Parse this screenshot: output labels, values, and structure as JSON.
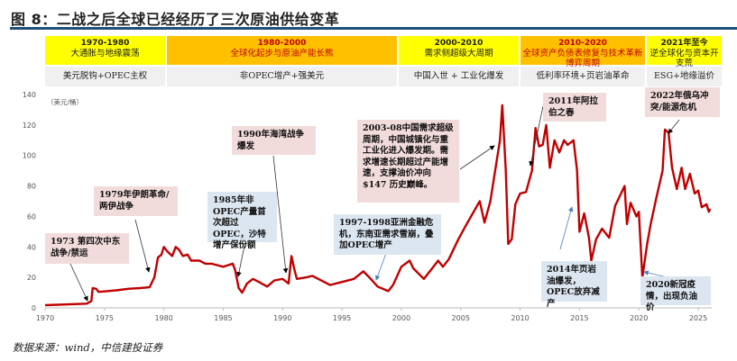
{
  "title": "图 8：二战之后全球已经经历了三次原油供给变革",
  "periods": [
    {
      "years": "1970-1980",
      "theme": "大通胀与地缘震荡",
      "driver": "美元脱钩+OPEC主权",
      "color": "#ffff00",
      "text_color": "#222222"
    },
    {
      "years": "1980-2000",
      "theme": "全球化起步与原油产能长熊",
      "driver": "非OPEC增产+强美元",
      "color": "#ffc000",
      "text_color": "#c00000"
    },
    {
      "years": "2000-2010",
      "theme": "需求侧超级大周期",
      "driver": "中国入世 + 工业化爆发",
      "color": "#ffff00",
      "text_color": "#222222"
    },
    {
      "years": "2010-2020",
      "theme": "全球资产负债表修复与技术革新博弈周期",
      "driver": "低利率环境+页岩油革命",
      "color": "#ffc000",
      "text_color": "#c00000"
    },
    {
      "years": "2021年至今",
      "theme": "逆全球化与资本开支荒",
      "driver": "ESG+地缘溢价",
      "color": "#ffff00",
      "text_color": "#222222"
    }
  ],
  "annotations": [
    {
      "text": "1973 第四次中东战争/禁运",
      "style": "pink"
    },
    {
      "text": "1979年伊朗革命/两伊战争",
      "style": "pink"
    },
    {
      "text": "1985年非OPEC产量首次超过OPEC，沙特增产保份额",
      "style": "blue"
    },
    {
      "text": "1990年海湾战争爆发",
      "style": "pink"
    },
    {
      "text": "2003-08中国需求超级周期，中国城镇化与重工业化进入爆发期。需求增速长期超过产能增速，支撑油价冲向 $147 历史巅峰。",
      "style": "pink"
    },
    {
      "text": "1997-1998亚洲金融危机，东南亚需求雪崩，叠加OPEC增产",
      "style": "blue"
    },
    {
      "text": "2011年阿拉伯之春",
      "style": "pink"
    },
    {
      "text": "2014年页岩油爆发，OPEC放弃减产",
      "style": "blue"
    },
    {
      "text": "2022年俄乌冲突/能源危机",
      "style": "pink"
    },
    {
      "text": "2020新冠疫情，出现负油价",
      "style": "blue"
    }
  ],
  "source": "数据来源：wind，中信建投证券",
  "chart_data": {
    "type": "line",
    "ylabel": "（美元/桶）",
    "ylim": [
      0,
      140
    ],
    "yticks": [
      0,
      20,
      40,
      60,
      80,
      100,
      120,
      140
    ],
    "xlim": [
      1970,
      2026
    ],
    "xticks": [
      1970,
      1975,
      1980,
      1985,
      1990,
      1995,
      2000,
      2005,
      2010,
      2015,
      2020,
      2025
    ],
    "grid": false,
    "line_color": "#c00000",
    "points": [
      [
        1970,
        1.8
      ],
      [
        1973.5,
        2.8
      ],
      [
        1973.9,
        4.5
      ],
      [
        1974.0,
        13
      ],
      [
        1974.3,
        12.5
      ],
      [
        1974.5,
        10.5
      ],
      [
        1975,
        10.8
      ],
      [
        1976,
        11.5
      ],
      [
        1977,
        12.5
      ],
      [
        1978,
        13
      ],
      [
        1978.8,
        13.5
      ],
      [
        1979.2,
        20
      ],
      [
        1979.5,
        33
      ],
      [
        1979.8,
        35
      ],
      [
        1980.0,
        40
      ],
      [
        1980.3,
        37
      ],
      [
        1980.7,
        34
      ],
      [
        1981.0,
        40
      ],
      [
        1981.3,
        38
      ],
      [
        1981.6,
        34
      ],
      [
        1982,
        35
      ],
      [
        1982.3,
        31
      ],
      [
        1983,
        31
      ],
      [
        1983.5,
        29
      ],
      [
        1984,
        29
      ],
      [
        1985,
        27
      ],
      [
        1985.8,
        29
      ],
      [
        1986.0,
        25
      ],
      [
        1986.3,
        13
      ],
      [
        1986.6,
        10
      ],
      [
        1987,
        16
      ],
      [
        1987.5,
        19
      ],
      [
        1988,
        17
      ],
      [
        1988.7,
        14
      ],
      [
        1989.3,
        18
      ],
      [
        1990,
        19
      ],
      [
        1990.5,
        16
      ],
      [
        1990.75,
        34
      ],
      [
        1991.0,
        25
      ],
      [
        1991.2,
        19
      ],
      [
        1992,
        20
      ],
      [
        1992.5,
        21
      ],
      [
        1993,
        19
      ],
      [
        1994,
        15
      ],
      [
        1995,
        17
      ],
      [
        1996,
        19
      ],
      [
        1996.8,
        24
      ],
      [
        1997.3,
        20
      ],
      [
        1998,
        14
      ],
      [
        1998.9,
        11
      ],
      [
        1999.3,
        15
      ],
      [
        2000,
        27
      ],
      [
        2000.7,
        31
      ],
      [
        2001,
        26
      ],
      [
        2001.9,
        19
      ],
      [
        2002.5,
        25
      ],
      [
        2003.1,
        31
      ],
      [
        2003.5,
        27
      ],
      [
        2004,
        32
      ],
      [
        2004.8,
        45
      ],
      [
        2005.5,
        55
      ],
      [
        2006.6,
        70
      ],
      [
        2007.0,
        56
      ],
      [
        2007.5,
        70
      ],
      [
        2007.9,
        90
      ],
      [
        2008.3,
        110
      ],
      [
        2008.5,
        133
      ],
      [
        2008.8,
        90
      ],
      [
        2009.0,
        42
      ],
      [
        2009.3,
        45
      ],
      [
        2009.6,
        68
      ],
      [
        2010,
        75
      ],
      [
        2010.5,
        76
      ],
      [
        2011.0,
        90
      ],
      [
        2011.3,
        118
      ],
      [
        2011.6,
        106
      ],
      [
        2011.9,
        107
      ],
      [
        2012.2,
        120
      ],
      [
        2012.5,
        92
      ],
      [
        2012.9,
        110
      ],
      [
        2013.3,
        102
      ],
      [
        2013.7,
        110
      ],
      [
        2014.0,
        107
      ],
      [
        2014.5,
        110
      ],
      [
        2014.8,
        90
      ],
      [
        2015.0,
        50
      ],
      [
        2015.4,
        62
      ],
      [
        2015.8,
        46
      ],
      [
        2016.0,
        31
      ],
      [
        2016.4,
        45
      ],
      [
        2016.9,
        52
      ],
      [
        2017.5,
        46
      ],
      [
        2018.0,
        67
      ],
      [
        2018.8,
        80
      ],
      [
        2019.0,
        55
      ],
      [
        2019.3,
        69
      ],
      [
        2019.8,
        60
      ],
      [
        2020.0,
        63
      ],
      [
        2020.3,
        20
      ],
      [
        2020.7,
        42
      ],
      [
        2021.0,
        55
      ],
      [
        2021.5,
        73
      ],
      [
        2022.0,
        90
      ],
      [
        2022.2,
        117
      ],
      [
        2022.5,
        115
      ],
      [
        2022.8,
        92
      ],
      [
        2023.2,
        78
      ],
      [
        2023.6,
        92
      ],
      [
        2023.9,
        78
      ],
      [
        2024.3,
        88
      ],
      [
        2024.7,
        75
      ],
      [
        2025.0,
        77
      ],
      [
        2025.3,
        66
      ],
      [
        2025.7,
        68
      ],
      [
        2025.9,
        63
      ],
      [
        2026.0,
        65
      ]
    ]
  }
}
